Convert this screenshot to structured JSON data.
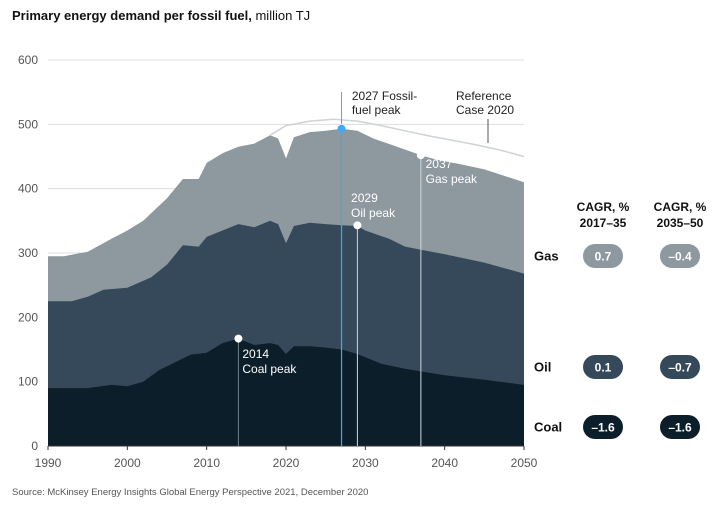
{
  "title": {
    "bold": "Primary energy demand per fossil fuel,",
    "normal": " million TJ"
  },
  "source": "Source: McKinsey Energy Insights Global Energy Perspective 2021, December 2020",
  "colors": {
    "coal": "#0d1e2b",
    "oil": "#35495a",
    "gas": "#8d989f",
    "reference": "#cfd3d6",
    "fossil_peak": "#3fa9f5",
    "grid": "#dddddd"
  },
  "chart_data": {
    "type": "area",
    "stacked": true,
    "title": "Primary energy demand per fossil fuel, million TJ",
    "xlabel": "",
    "ylabel": "",
    "xlim": [
      1990,
      2050
    ],
    "ylim": [
      0,
      600
    ],
    "x_ticks": [
      1990,
      2000,
      2010,
      2020,
      2030,
      2040,
      2050
    ],
    "y_ticks": [
      0,
      100,
      200,
      300,
      400,
      500,
      600
    ],
    "grid": true,
    "series": [
      {
        "name": "Coal",
        "color": "#0d1e2b",
        "points": [
          [
            1990,
            90
          ],
          [
            1995,
            90
          ],
          [
            1998,
            95
          ],
          [
            2000,
            93
          ],
          [
            2002,
            100
          ],
          [
            2004,
            118
          ],
          [
            2006,
            130
          ],
          [
            2008,
            142
          ],
          [
            2010,
            145
          ],
          [
            2012,
            160
          ],
          [
            2014,
            167
          ],
          [
            2016,
            157
          ],
          [
            2018,
            160
          ],
          [
            2019,
            157
          ],
          [
            2020,
            143
          ],
          [
            2021,
            155
          ],
          [
            2023,
            155
          ],
          [
            2025,
            153
          ],
          [
            2027,
            150
          ],
          [
            2029,
            143
          ],
          [
            2030,
            138
          ],
          [
            2032,
            128
          ],
          [
            2035,
            120
          ],
          [
            2037,
            116
          ],
          [
            2040,
            110
          ],
          [
            2045,
            103
          ],
          [
            2050,
            95
          ]
        ]
      },
      {
        "name": "Oil",
        "color": "#35495a",
        "points": [
          [
            1990,
            225
          ],
          [
            1993,
            225
          ],
          [
            1995,
            232
          ],
          [
            1997,
            243
          ],
          [
            2000,
            246
          ],
          [
            2003,
            262
          ],
          [
            2005,
            282
          ],
          [
            2007,
            312
          ],
          [
            2009,
            310
          ],
          [
            2010,
            325
          ],
          [
            2012,
            335
          ],
          [
            2014,
            345
          ],
          [
            2016,
            340
          ],
          [
            2018,
            350
          ],
          [
            2019,
            345
          ],
          [
            2020,
            315
          ],
          [
            2021,
            342
          ],
          [
            2023,
            347
          ],
          [
            2025,
            345
          ],
          [
            2027,
            343
          ],
          [
            2029,
            342
          ],
          [
            2030,
            335
          ],
          [
            2033,
            322
          ],
          [
            2035,
            310
          ],
          [
            2037,
            305
          ],
          [
            2040,
            298
          ],
          [
            2045,
            285
          ],
          [
            2050,
            268
          ]
        ]
      },
      {
        "name": "Gas",
        "color": "#8d989f",
        "points": [
          [
            1990,
            295
          ],
          [
            1992,
            295
          ],
          [
            1995,
            302
          ],
          [
            1998,
            322
          ],
          [
            2000,
            335
          ],
          [
            2002,
            350
          ],
          [
            2005,
            385
          ],
          [
            2007,
            415
          ],
          [
            2009,
            415
          ],
          [
            2010,
            440
          ],
          [
            2012,
            455
          ],
          [
            2014,
            465
          ],
          [
            2016,
            470
          ],
          [
            2018,
            483
          ],
          [
            2019,
            478
          ],
          [
            2020,
            447
          ],
          [
            2021,
            480
          ],
          [
            2023,
            488
          ],
          [
            2025,
            490
          ],
          [
            2027,
            493
          ],
          [
            2029,
            490
          ],
          [
            2031,
            478
          ],
          [
            2034,
            465
          ],
          [
            2037,
            452
          ],
          [
            2039,
            445
          ],
          [
            2042,
            438
          ],
          [
            2045,
            430
          ],
          [
            2050,
            410
          ]
        ]
      },
      {
        "name": "Reference Case 2020",
        "type": "line",
        "color": "#cfd3d6",
        "points": [
          [
            2018,
            483
          ],
          [
            2020,
            498
          ],
          [
            2023,
            505
          ],
          [
            2026,
            508
          ],
          [
            2029,
            505
          ],
          [
            2032,
            498
          ],
          [
            2035,
            490
          ],
          [
            2038,
            482
          ],
          [
            2041,
            475
          ],
          [
            2044,
            468
          ],
          [
            2047,
            460
          ],
          [
            2050,
            450
          ]
        ]
      }
    ],
    "annotations": [
      {
        "text": [
          "2027 Fossil-",
          "fuel peak"
        ],
        "x": 2027,
        "y": 493
      },
      {
        "text": [
          "2029",
          "Oil peak"
        ],
        "x": 2029,
        "y": 343
      },
      {
        "text": [
          "2037",
          "Gas peak"
        ],
        "x": 2037,
        "y": 452
      },
      {
        "text": [
          "2014",
          "Coal peak"
        ],
        "x": 2014,
        "y": 167
      },
      {
        "text": [
          "Reference",
          "Case 2020"
        ]
      }
    ],
    "cagr": {
      "headers": [
        [
          "CAGR, %",
          "2017–35"
        ],
        [
          "CAGR, %",
          "2035–50"
        ]
      ],
      "rows": [
        {
          "fuel": "Gas",
          "v1": "0.7",
          "v2": "–0.4",
          "color": "#8d989f"
        },
        {
          "fuel": "Oil",
          "v1": "0.1",
          "v2": "–0.7",
          "color": "#35495a"
        },
        {
          "fuel": "Coal",
          "v1": "–1.6",
          "v2": "–1.6",
          "color": "#0d1e2b"
        }
      ]
    }
  }
}
